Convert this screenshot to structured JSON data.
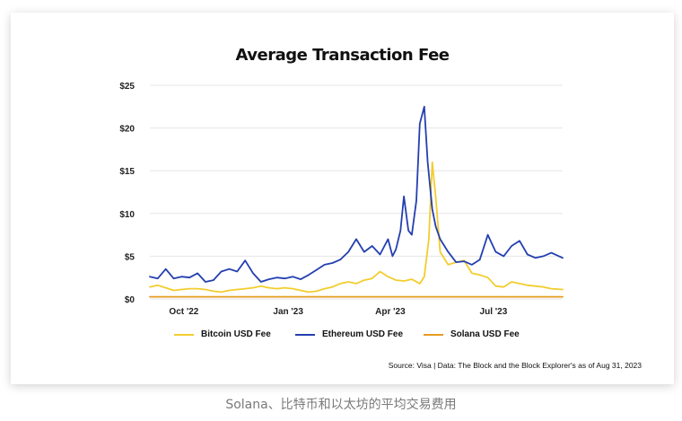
{
  "caption": "Solana、比特币和以太坊的平均交易费用",
  "source": "Source: Visa | Data: The Block and the Block Explorer's as of Aug 31, 2023",
  "colors": {
    "bitcoin": "#f2cd2e",
    "ethereum": "#243fb0",
    "solana": "#e59c1f",
    "grid": "#e6e6e6"
  },
  "chart_data": {
    "type": "line",
    "title": "Average Transaction Fee",
    "xlabel": "",
    "ylabel": "",
    "ylim": [
      0,
      25
    ],
    "yticks": [
      0,
      5,
      10,
      15,
      20,
      25
    ],
    "ytick_labels": [
      "$0",
      "$5",
      "$10",
      "$15",
      "$20",
      "$25"
    ],
    "xlim": [
      "2022-09-01",
      "2023-08-31"
    ],
    "xticks": [
      "2022-10-01",
      "2023-01-01",
      "2023-04-01",
      "2023-07-01"
    ],
    "xtick_labels": [
      "Oct '22",
      "Jan '23",
      "Apr '23",
      "Jul '23"
    ],
    "grid": true,
    "legend_position": "bottom",
    "series": [
      {
        "name": "Bitcoin USD Fee",
        "x": [
          "2022-09-01",
          "2022-09-08",
          "2022-09-15",
          "2022-09-22",
          "2022-09-29",
          "2022-10-06",
          "2022-10-13",
          "2022-10-20",
          "2022-10-27",
          "2022-11-03",
          "2022-11-10",
          "2022-11-17",
          "2022-11-24",
          "2022-12-01",
          "2022-12-08",
          "2022-12-15",
          "2022-12-22",
          "2022-12-29",
          "2023-01-05",
          "2023-01-12",
          "2023-01-19",
          "2023-01-26",
          "2023-02-02",
          "2023-02-09",
          "2023-02-16",
          "2023-02-23",
          "2023-03-02",
          "2023-03-09",
          "2023-03-16",
          "2023-03-23",
          "2023-03-30",
          "2023-04-06",
          "2023-04-13",
          "2023-04-20",
          "2023-04-27",
          "2023-05-01",
          "2023-05-05",
          "2023-05-08",
          "2023-05-11",
          "2023-05-15",
          "2023-05-22",
          "2023-05-29",
          "2023-06-05",
          "2023-06-12",
          "2023-06-19",
          "2023-06-26",
          "2023-07-03",
          "2023-07-10",
          "2023-07-17",
          "2023-07-24",
          "2023-07-31",
          "2023-08-07",
          "2023-08-14",
          "2023-08-21",
          "2023-08-31"
        ],
        "y": [
          1.4,
          1.6,
          1.3,
          1.0,
          1.1,
          1.2,
          1.2,
          1.1,
          0.9,
          0.8,
          1.0,
          1.1,
          1.2,
          1.3,
          1.5,
          1.3,
          1.2,
          1.3,
          1.2,
          1.0,
          0.8,
          0.9,
          1.2,
          1.4,
          1.8,
          2.0,
          1.8,
          2.2,
          2.4,
          3.2,
          2.6,
          2.2,
          2.1,
          2.3,
          1.8,
          2.6,
          7.0,
          16.0,
          12.0,
          5.5,
          4.0,
          4.3,
          4.5,
          3.0,
          2.8,
          2.5,
          1.5,
          1.4,
          2.0,
          1.8,
          1.6,
          1.5,
          1.4,
          1.2,
          1.1
        ]
      },
      {
        "name": "Ethereum USD Fee",
        "x": [
          "2022-09-01",
          "2022-09-08",
          "2022-09-15",
          "2022-09-22",
          "2022-09-29",
          "2022-10-06",
          "2022-10-13",
          "2022-10-20",
          "2022-10-27",
          "2022-11-03",
          "2022-11-10",
          "2022-11-17",
          "2022-11-24",
          "2022-12-01",
          "2022-12-08",
          "2022-12-15",
          "2022-12-22",
          "2022-12-29",
          "2023-01-05",
          "2023-01-12",
          "2023-01-19",
          "2023-01-26",
          "2023-02-02",
          "2023-02-09",
          "2023-02-16",
          "2023-02-23",
          "2023-03-02",
          "2023-03-09",
          "2023-03-16",
          "2023-03-23",
          "2023-03-30",
          "2023-04-03",
          "2023-04-06",
          "2023-04-10",
          "2023-04-13",
          "2023-04-17",
          "2023-04-20",
          "2023-04-24",
          "2023-04-27",
          "2023-05-01",
          "2023-05-04",
          "2023-05-08",
          "2023-05-11",
          "2023-05-15",
          "2023-05-22",
          "2023-05-29",
          "2023-06-05",
          "2023-06-12",
          "2023-06-19",
          "2023-06-26",
          "2023-07-03",
          "2023-07-10",
          "2023-07-17",
          "2023-07-24",
          "2023-07-31",
          "2023-08-07",
          "2023-08-14",
          "2023-08-21",
          "2023-08-31"
        ],
        "y": [
          2.6,
          2.4,
          3.5,
          2.4,
          2.6,
          2.5,
          3.0,
          2.0,
          2.2,
          3.2,
          3.5,
          3.2,
          4.5,
          3.0,
          2.0,
          2.3,
          2.5,
          2.4,
          2.6,
          2.3,
          2.8,
          3.4,
          4.0,
          4.2,
          4.6,
          5.5,
          7.0,
          5.5,
          6.2,
          5.2,
          7.0,
          5.0,
          5.8,
          8.0,
          12.0,
          8.0,
          7.5,
          11.5,
          20.5,
          22.5,
          16.0,
          10.5,
          8.5,
          7.0,
          5.5,
          4.3,
          4.4,
          4.0,
          4.6,
          7.5,
          5.5,
          5.0,
          6.2,
          6.8,
          5.2,
          4.8,
          5.0,
          5.4,
          4.8
        ]
      },
      {
        "name": "Solana USD Fee",
        "x": [
          "2022-09-01",
          "2023-08-31"
        ],
        "y": [
          0.25,
          0.25
        ]
      }
    ]
  }
}
